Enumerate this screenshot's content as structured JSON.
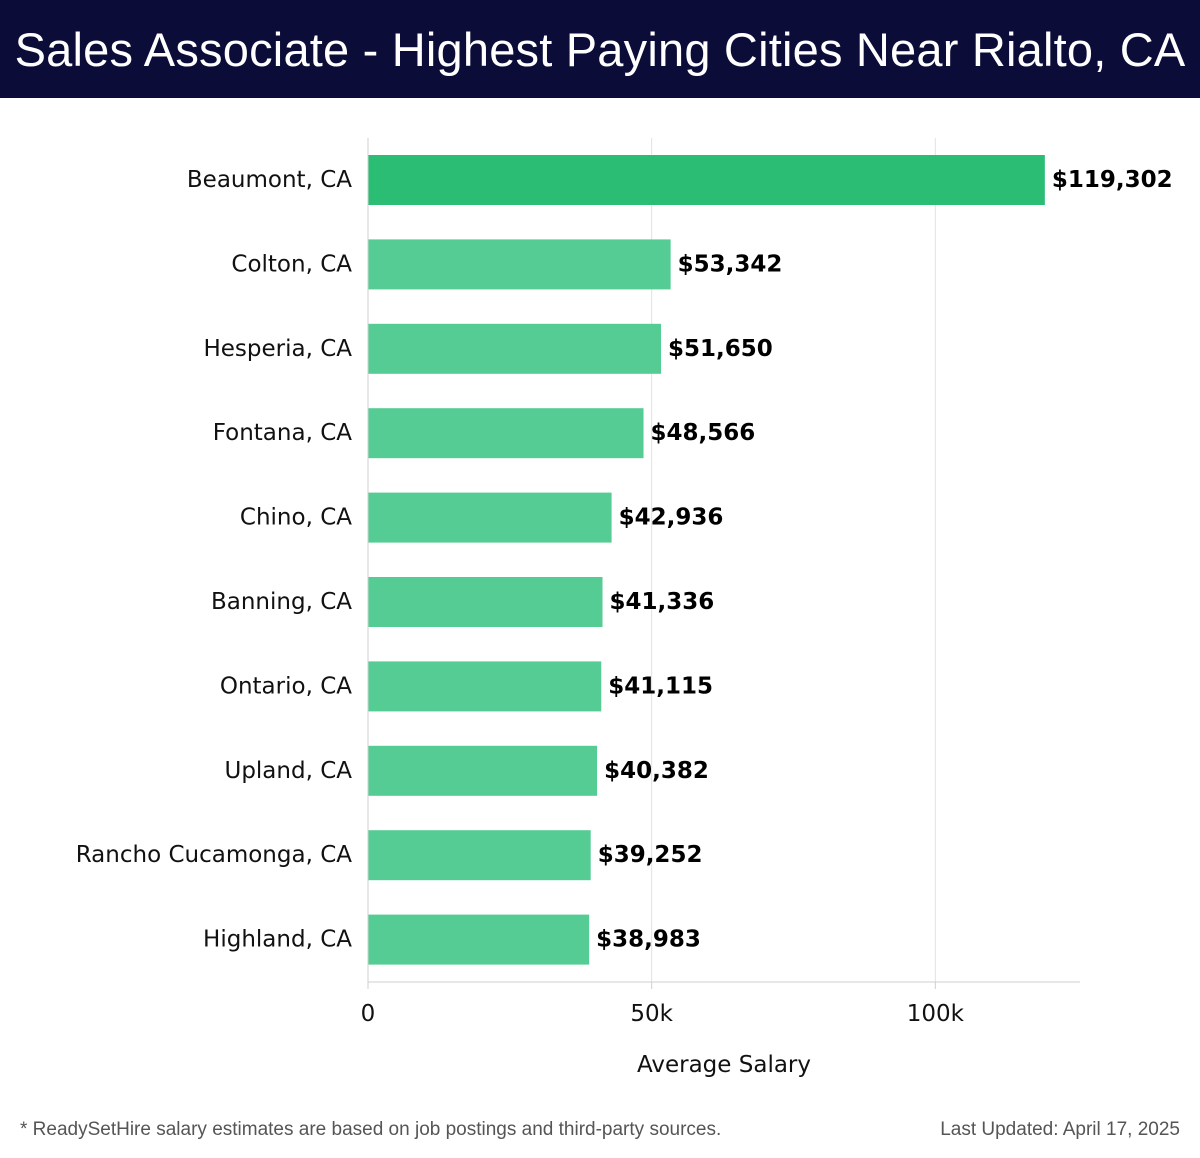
{
  "header": {
    "title": "Sales Associate - Highest Paying Cities Near Rialto, CA"
  },
  "chart_data": {
    "type": "bar",
    "orientation": "horizontal",
    "categories": [
      "Beaumont, CA",
      "Colton, CA",
      "Hesperia, CA",
      "Fontana, CA",
      "Chino, CA",
      "Banning, CA",
      "Ontario, CA",
      "Upland, CA",
      "Rancho Cucamonga, CA",
      "Highland, CA"
    ],
    "values": [
      119302,
      53342,
      51650,
      48566,
      42936,
      41336,
      41115,
      40382,
      39252,
      38983
    ],
    "value_labels": [
      "$119,302",
      "$53,342",
      "$51,650",
      "$48,566",
      "$42,936",
      "$41,336",
      "$41,115",
      "$40,382",
      "$39,252",
      "$38,983"
    ],
    "xlabel": "Average Salary",
    "ylabel": "",
    "xlim": [
      0,
      125500
    ],
    "xticks": [
      0,
      50000,
      100000
    ],
    "xtick_labels": [
      "0",
      "50k",
      "100k"
    ],
    "grid": true,
    "colors": {
      "highlight": "#2bbd74",
      "bar": "#55cc93"
    }
  },
  "footer": {
    "note": "* ReadySetHire salary estimates are based on job postings and third-party sources.",
    "updated": "Last Updated: April 17, 2025"
  }
}
